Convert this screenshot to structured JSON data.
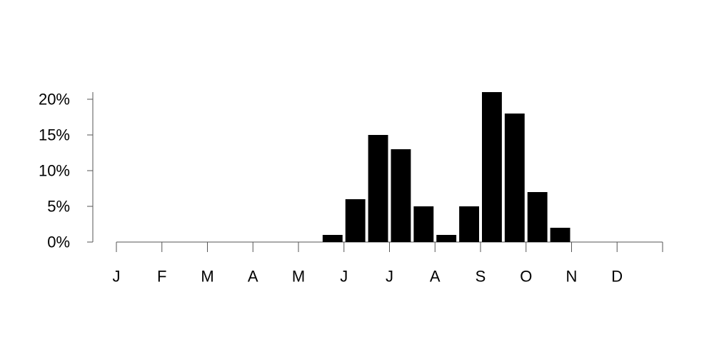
{
  "chart_data": {
    "type": "bar",
    "title": "",
    "xlabel": "",
    "ylabel": "",
    "x_ticks": [
      "J",
      "F",
      "M",
      "A",
      "M",
      "J",
      "J",
      "A",
      "S",
      "O",
      "N",
      "D"
    ],
    "y_ticks": [
      "0%",
      "5%",
      "10%",
      "15%",
      "20%"
    ],
    "ylim": [
      0,
      21
    ],
    "y_unit": "%",
    "bars_per_month": 2,
    "categories": [
      "Jan-1",
      "Jan-2",
      "Feb-1",
      "Feb-2",
      "Mar-1",
      "Mar-2",
      "Apr-1",
      "Apr-2",
      "May-1",
      "May-2",
      "Jun-1",
      "Jun-2",
      "Jul-1",
      "Jul-2",
      "Aug-1",
      "Aug-2",
      "Sep-1",
      "Sep-2",
      "Oct-1",
      "Oct-2",
      "Nov-1",
      "Nov-2",
      "Dec-1",
      "Dec-2"
    ],
    "values": [
      0,
      0,
      0,
      0,
      0,
      0,
      0,
      0,
      0,
      1,
      6,
      15,
      13,
      5,
      1,
      5,
      21,
      18,
      7,
      2,
      0,
      0,
      0,
      0
    ],
    "grid": false,
    "legend": "none",
    "bar_color": "#000000",
    "axis_color": "#555555"
  }
}
